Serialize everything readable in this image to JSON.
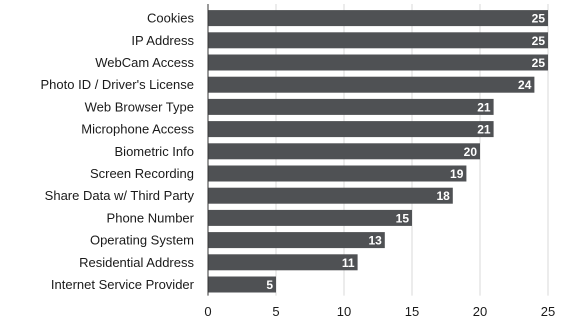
{
  "chart_data": {
    "type": "bar",
    "orientation": "horizontal",
    "categories": [
      "Cookies",
      "IP Address",
      "WebCam Access",
      "Photo ID / Driver's License",
      "Web Browser Type",
      "Microphone Access",
      "Biometric Info",
      "Screen Recording",
      "Share Data w/ Third Party",
      "Phone Number",
      "Operating System",
      "Residential Address",
      "Internet Service Provider"
    ],
    "values": [
      25,
      25,
      25,
      24,
      21,
      21,
      20,
      19,
      18,
      15,
      13,
      11,
      5
    ],
    "xlim": [
      0,
      25
    ],
    "xticks": [
      0,
      5,
      10,
      15,
      20,
      25
    ],
    "grid": true,
    "bar_color": "#4f5154",
    "label_color": "#ffffff",
    "title": "",
    "xlabel": "",
    "ylabel": ""
  }
}
